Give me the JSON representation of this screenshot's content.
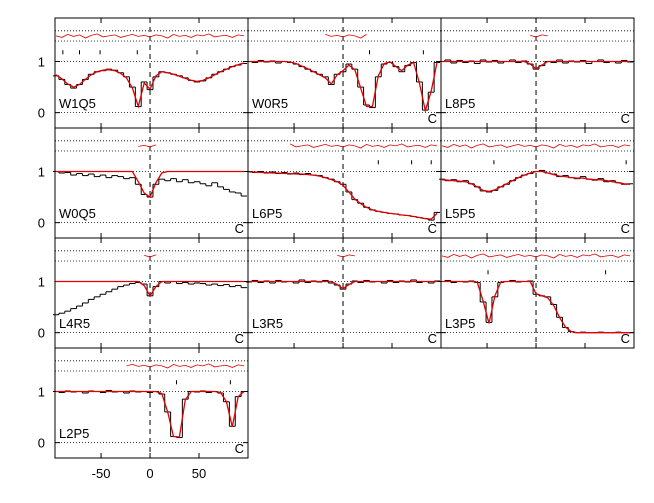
{
  "chart_data": {
    "type": "line",
    "x": [
      -96,
      -90,
      -84,
      -78,
      -72,
      -66,
      -60,
      -54,
      -48,
      -42,
      -36,
      -30,
      -24,
      -18,
      -12,
      -6,
      0,
      6,
      12,
      18,
      24,
      30,
      36,
      42,
      48,
      54,
      60,
      66,
      72,
      78,
      84,
      90,
      96
    ],
    "xlim": [
      -97,
      100
    ],
    "ylim": [
      -0.3,
      1.85
    ],
    "xticks": [
      -50,
      0,
      50
    ],
    "yticks": [
      0,
      1
    ],
    "hlines": [
      0,
      1,
      1.4,
      1.6
    ],
    "marker_line": 0,
    "flux_color": "#000000",
    "model_color": "#e00000",
    "panels": [
      {
        "label": "W1Q5",
        "components": [
          -89,
          -72,
          -51,
          -13,
          48
        ],
        "flux": [
          0.72,
          0.65,
          0.55,
          0.48,
          0.55,
          0.65,
          0.75,
          0.8,
          0.82,
          0.85,
          0.83,
          0.78,
          0.7,
          0.5,
          0.12,
          0.6,
          0.45,
          0.7,
          0.8,
          0.78,
          0.75,
          0.72,
          0.68,
          0.63,
          0.6,
          0.62,
          0.68,
          0.75,
          0.8,
          0.85,
          0.9,
          0.93,
          0.96
        ],
        "model": [
          0.74,
          0.66,
          0.56,
          0.5,
          0.55,
          0.65,
          0.74,
          0.8,
          0.83,
          0.84,
          0.82,
          0.77,
          0.68,
          0.48,
          0.12,
          0.58,
          0.46,
          0.72,
          0.8,
          0.78,
          0.75,
          0.71,
          0.67,
          0.63,
          0.61,
          0.63,
          0.68,
          0.74,
          0.8,
          0.85,
          0.9,
          0.94,
          0.97
        ],
        "residual": [
          1.5,
          1.47,
          1.53,
          1.49,
          1.52,
          1.46,
          1.51,
          1.54,
          1.48,
          1.5,
          1.52,
          1.47,
          1.5,
          1.53,
          1.49,
          1.51,
          1.48,
          1.52,
          1.5,
          1.46,
          1.53,
          1.49,
          1.51,
          1.47,
          1.52,
          1.5,
          1.54,
          1.48,
          1.5,
          1.51,
          1.47,
          1.52,
          1.5
        ]
      },
      {
        "label": "W0R5",
        "corner": "C",
        "components": [
          27,
          82
        ],
        "flux": [
          1.0,
          0.98,
          1.02,
          0.99,
          1.01,
          0.97,
          1.0,
          0.98,
          0.95,
          0.9,
          0.85,
          0.8,
          0.75,
          0.7,
          0.55,
          0.75,
          0.8,
          0.95,
          0.85,
          0.5,
          0.15,
          0.1,
          0.7,
          0.95,
          0.98,
          0.9,
          0.8,
          0.92,
          0.98,
          0.6,
          0.05,
          0.4,
          0.98
        ],
        "model": [
          1,
          1,
          1,
          1,
          1,
          1,
          1,
          0.99,
          0.96,
          0.91,
          0.86,
          0.8,
          0.74,
          0.68,
          0.56,
          0.74,
          0.82,
          0.93,
          0.84,
          0.48,
          0.12,
          0.12,
          0.72,
          0.96,
          0.99,
          0.9,
          0.82,
          0.93,
          0.98,
          0.58,
          0.04,
          0.42,
          0.99
        ],
        "residual": [
          null,
          null,
          null,
          null,
          null,
          null,
          null,
          null,
          null,
          null,
          null,
          null,
          null,
          1.53,
          1.49,
          1.51,
          1.48,
          1.52,
          1.5,
          1.46,
          1.53,
          null,
          null,
          null,
          null,
          null,
          null,
          null,
          null,
          null,
          null,
          null,
          null
        ]
      },
      {
        "label": "L8P5",
        "corner": "C",
        "components": [],
        "flux": [
          1.0,
          1.03,
          0.97,
          1.02,
          0.98,
          1.01,
          0.96,
          1.03,
          0.99,
          1.02,
          0.97,
          1.0,
          1.03,
          0.98,
          1.01,
          0.95,
          0.85,
          0.92,
          1.0,
          0.98,
          1.03,
          0.97,
          1.01,
          0.99,
          1.02,
          0.96,
          1.0,
          1.03,
          0.98,
          1.0,
          0.97,
          1.02,
          0.99
        ],
        "model": [
          1,
          1,
          1,
          1,
          1,
          1,
          1,
          1,
          1,
          1,
          1,
          1,
          1,
          1,
          1,
          0.95,
          0.86,
          0.93,
          1,
          1,
          1,
          1,
          1,
          1,
          1,
          1,
          1,
          1,
          1,
          1,
          1,
          1,
          1
        ],
        "residual": [
          null,
          null,
          null,
          null,
          null,
          null,
          null,
          null,
          null,
          null,
          null,
          null,
          null,
          null,
          null,
          1.51,
          1.48,
          1.52,
          1.5,
          null,
          null,
          null,
          null,
          null,
          null,
          null,
          null,
          null,
          null,
          null,
          null,
          null,
          null
        ]
      },
      {
        "label": "W0Q5",
        "corner": "C",
        "components": [],
        "flux": [
          1.0,
          0.97,
          0.98,
          0.93,
          0.96,
          0.92,
          0.95,
          0.9,
          0.93,
          0.88,
          0.92,
          0.9,
          0.86,
          0.88,
          0.75,
          0.55,
          0.5,
          0.75,
          0.85,
          0.82,
          0.86,
          0.8,
          0.84,
          0.78,
          0.8,
          0.76,
          0.72,
          0.78,
          0.7,
          0.65,
          0.6,
          0.58,
          0.52
        ],
        "model": [
          1,
          1,
          1,
          1,
          1,
          1,
          1,
          1,
          1,
          1,
          1,
          1,
          1,
          1,
          0.8,
          0.58,
          0.5,
          0.78,
          0.97,
          1,
          1,
          1,
          1,
          1,
          1,
          1,
          1,
          1,
          1,
          1,
          1,
          1,
          1
        ],
        "residual": [
          null,
          null,
          null,
          null,
          null,
          null,
          null,
          null,
          null,
          null,
          null,
          null,
          null,
          null,
          1.49,
          1.51,
          1.48,
          1.52,
          null,
          null,
          null,
          null,
          null,
          null,
          null,
          null,
          null,
          null,
          null,
          null,
          null,
          null,
          null
        ]
      },
      {
        "label": "L6P5",
        "corner": "C",
        "components": [
          36,
          70,
          90
        ],
        "flux": [
          1.0,
          0.98,
          1.0,
          0.97,
          0.99,
          0.96,
          0.98,
          0.95,
          0.97,
          0.94,
          0.96,
          0.93,
          0.92,
          0.88,
          0.85,
          0.8,
          0.75,
          0.6,
          0.45,
          0.38,
          0.3,
          0.25,
          0.22,
          0.2,
          0.18,
          0.17,
          0.15,
          0.14,
          0.12,
          0.1,
          0.08,
          0.05,
          0.2
        ],
        "model": [
          0.99,
          0.99,
          0.98,
          0.98,
          0.97,
          0.97,
          0.96,
          0.96,
          0.95,
          0.95,
          0.94,
          0.93,
          0.91,
          0.88,
          0.84,
          0.8,
          0.73,
          0.6,
          0.46,
          0.37,
          0.3,
          0.25,
          0.22,
          0.2,
          0.18,
          0.17,
          0.15,
          0.14,
          0.12,
          0.1,
          0.08,
          0.07,
          0.18
        ],
        "residual": [
          null,
          null,
          null,
          null,
          null,
          null,
          null,
          1.54,
          1.48,
          1.5,
          1.52,
          1.47,
          1.5,
          1.53,
          1.49,
          1.51,
          1.48,
          1.52,
          1.5,
          1.46,
          1.53,
          1.49,
          1.51,
          1.47,
          1.52,
          1.5,
          1.54,
          1.48,
          1.5,
          1.51,
          1.47,
          1.52,
          1.5
        ]
      },
      {
        "label": "L5P5",
        "corner": "C",
        "components": [
          -43,
          92
        ],
        "flux": [
          0.85,
          0.82,
          0.84,
          0.8,
          0.82,
          0.76,
          0.7,
          0.62,
          0.6,
          0.63,
          0.7,
          0.75,
          0.82,
          0.88,
          0.93,
          0.96,
          1.0,
          1.02,
          0.97,
          0.95,
          0.9,
          0.92,
          0.88,
          0.86,
          0.9,
          0.85,
          0.83,
          0.86,
          0.8,
          0.82,
          0.78,
          0.75,
          0.76
        ],
        "model": [
          0.84,
          0.83,
          0.82,
          0.81,
          0.8,
          0.76,
          0.7,
          0.63,
          0.61,
          0.64,
          0.7,
          0.76,
          0.82,
          0.88,
          0.93,
          0.97,
          1.0,
          1.0,
          0.97,
          0.94,
          0.91,
          0.9,
          0.88,
          0.87,
          0.87,
          0.85,
          0.84,
          0.84,
          0.82,
          0.8,
          0.78,
          0.76,
          0.75
        ],
        "residual": [
          1.5,
          1.47,
          1.53,
          1.49,
          1.52,
          1.46,
          1.51,
          1.54,
          1.48,
          1.5,
          1.52,
          1.47,
          1.5,
          1.53,
          1.49,
          1.51,
          1.48,
          1.52,
          1.5,
          1.46,
          1.53,
          1.49,
          1.51,
          1.47,
          1.52,
          1.5,
          1.54,
          1.48,
          1.5,
          1.51,
          1.47,
          1.52,
          1.5
        ]
      },
      {
        "label": "L4R5",
        "corner": "C",
        "components": [],
        "flux": [
          0.35,
          0.38,
          0.42,
          0.47,
          0.52,
          0.58,
          0.65,
          0.7,
          0.75,
          0.8,
          0.85,
          0.9,
          0.93,
          0.96,
          0.98,
          0.95,
          0.72,
          0.9,
          1.0,
          0.97,
          1.0,
          0.96,
          0.98,
          0.95,
          0.97,
          0.96,
          0.93,
          0.95,
          0.92,
          0.94,
          0.9,
          0.92,
          0.88
        ],
        "model": [
          1,
          1,
          1,
          1,
          1,
          1,
          1,
          1,
          1,
          1,
          1,
          1,
          1,
          1,
          1,
          0.92,
          0.72,
          0.9,
          1,
          1,
          1,
          1,
          1,
          1,
          1,
          1,
          1,
          1,
          1,
          1,
          1,
          1,
          1
        ],
        "residual": [
          null,
          null,
          null,
          null,
          null,
          null,
          null,
          null,
          null,
          null,
          null,
          null,
          null,
          null,
          null,
          1.51,
          1.48,
          1.52,
          null,
          null,
          null,
          null,
          null,
          null,
          null,
          null,
          null,
          null,
          null,
          null,
          null,
          null,
          null
        ]
      },
      {
        "label": "L3R5",
        "corner": "C",
        "components": [],
        "flux": [
          0.99,
          1.02,
          0.98,
          1.01,
          0.97,
          1.02,
          0.99,
          1.0,
          0.97,
          1.03,
          0.98,
          1.01,
          0.99,
          1.02,
          0.97,
          0.93,
          0.85,
          0.95,
          1.01,
          0.98,
          1.02,
          0.99,
          1.0,
          0.97,
          1.02,
          0.98,
          1.01,
          0.99,
          1.03,
          0.98,
          1.0,
          0.97,
          1.01
        ],
        "model": [
          1,
          1,
          1,
          1,
          1,
          1,
          1,
          1,
          1,
          1,
          1,
          1,
          1,
          1,
          1,
          0.94,
          0.86,
          0.94,
          1,
          1,
          1,
          1,
          1,
          1,
          1,
          1,
          1,
          1,
          1,
          1,
          1,
          1,
          1
        ],
        "residual": [
          null,
          null,
          null,
          null,
          null,
          null,
          null,
          null,
          null,
          null,
          null,
          null,
          null,
          null,
          null,
          1.51,
          1.48,
          1.52,
          1.5,
          null,
          null,
          null,
          null,
          null,
          null,
          null,
          null,
          null,
          null,
          null,
          null,
          null,
          null
        ]
      },
      {
        "label": "L3P5",
        "corner": "C",
        "components": [
          -49,
          71
        ],
        "flux": [
          1.0,
          1.02,
          0.98,
          1.0,
          0.99,
          1.01,
          0.98,
          0.6,
          0.2,
          0.7,
          0.98,
          1.0,
          1.02,
          0.99,
          1.0,
          1.01,
          0.75,
          0.72,
          0.7,
          0.55,
          0.3,
          0.1,
          0.02,
          0.0,
          0.01,
          0.0,
          0.0,
          0.01,
          0.0,
          0.0,
          0.01,
          0.0,
          0.0
        ],
        "model": [
          1,
          1,
          1,
          1,
          1,
          1,
          0.99,
          0.62,
          0.18,
          0.72,
          0.99,
          1,
          1,
          1,
          1,
          1,
          0.76,
          0.72,
          0.68,
          0.53,
          0.3,
          0.11,
          0.02,
          0.0,
          0.0,
          0.0,
          0.0,
          0.0,
          0.0,
          0.0,
          0.0,
          0.0,
          0.0
        ],
        "residual": [
          1.5,
          1.47,
          1.53,
          1.49,
          1.52,
          1.46,
          1.51,
          1.54,
          1.48,
          1.5,
          1.52,
          1.47,
          1.5,
          1.53,
          1.49,
          1.51,
          1.48,
          1.52,
          1.5,
          1.46,
          1.53,
          1.49,
          1.51,
          1.47,
          1.52,
          1.5,
          1.54,
          1.48,
          1.5,
          1.51,
          1.47,
          1.52,
          1.5
        ]
      },
      {
        "label": "L2P5",
        "corner": "C",
        "components": [
          27,
          82
        ],
        "flux": [
          1.0,
          0.98,
          1.01,
          0.99,
          1.0,
          0.97,
          1.01,
          1.0,
          0.98,
          1.02,
          0.99,
          1.0,
          0.97,
          1.01,
          0.99,
          1.0,
          0.98,
          1.0,
          0.95,
          0.6,
          0.12,
          0.1,
          0.85,
          1.0,
          0.99,
          1.01,
          0.98,
          1.0,
          0.97,
          0.8,
          0.32,
          0.9,
          1.0
        ],
        "model": [
          1,
          1,
          1,
          1,
          1,
          1,
          1,
          1,
          1,
          1,
          1,
          1,
          1,
          1,
          1,
          1,
          1,
          1,
          0.96,
          0.6,
          0.12,
          0.11,
          0.84,
          1,
          1,
          1,
          1,
          1,
          0.98,
          0.8,
          0.31,
          0.9,
          1
        ],
        "residual": [
          null,
          null,
          null,
          null,
          null,
          null,
          null,
          null,
          null,
          null,
          null,
          null,
          1.5,
          1.53,
          1.49,
          1.51,
          1.48,
          1.52,
          1.5,
          1.46,
          1.53,
          1.49,
          1.51,
          1.47,
          1.52,
          1.5,
          1.54,
          1.48,
          1.5,
          1.51,
          1.47,
          1.52,
          1.5
        ]
      }
    ]
  }
}
